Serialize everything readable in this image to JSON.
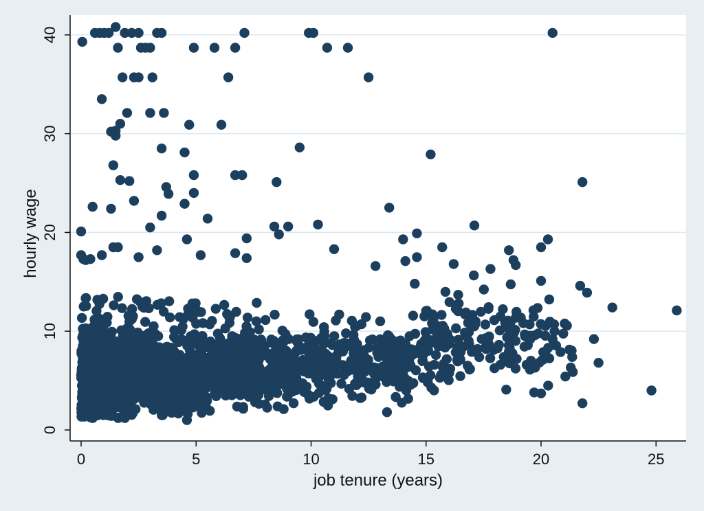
{
  "chart_data": {
    "type": "scatter",
    "title": "",
    "xlabel": "job tenure (years)",
    "ylabel": "hourly wage",
    "xlim": [
      -0.6,
      26.4
    ],
    "ylim": [
      -0.6,
      41.0
    ],
    "xticks": [
      0,
      5,
      10,
      15,
      20,
      25
    ],
    "yticks": [
      0,
      10,
      20,
      30,
      40
    ],
    "grid": "horizontal",
    "colors": {
      "marker": "#1d3f5e",
      "plot_background": "#ffffff",
      "outer_background": "#e8eef2",
      "grid": "#dde8ee",
      "axis": "#111111"
    },
    "outliers": [
      [
        0.05,
        39.3
      ],
      [
        0.6,
        40.2
      ],
      [
        0.8,
        40.2
      ],
      [
        1.0,
        40.2
      ],
      [
        1.2,
        40.2
      ],
      [
        1.5,
        40.8
      ],
      [
        1.9,
        40.2
      ],
      [
        2.2,
        40.2
      ],
      [
        2.5,
        40.2
      ],
      [
        3.3,
        40.2
      ],
      [
        3.5,
        40.2
      ],
      [
        7.1,
        40.2
      ],
      [
        9.9,
        40.2
      ],
      [
        10.1,
        40.2
      ],
      [
        20.5,
        40.2
      ],
      [
        1.6,
        38.7
      ],
      [
        2.6,
        38.7
      ],
      [
        2.8,
        38.7
      ],
      [
        3.0,
        38.7
      ],
      [
        4.9,
        38.7
      ],
      [
        5.8,
        38.7
      ],
      [
        6.7,
        38.7
      ],
      [
        10.7,
        38.7
      ],
      [
        11.6,
        38.7
      ],
      [
        1.8,
        35.7
      ],
      [
        2.3,
        35.7
      ],
      [
        2.5,
        35.7
      ],
      [
        3.1,
        35.7
      ],
      [
        6.4,
        35.7
      ],
      [
        12.5,
        35.7
      ],
      [
        0.9,
        33.5
      ],
      [
        2.0,
        32.1
      ],
      [
        3.0,
        32.1
      ],
      [
        3.6,
        32.1
      ],
      [
        1.7,
        31.0
      ],
      [
        4.7,
        30.9
      ],
      [
        6.1,
        30.9
      ],
      [
        1.3,
        30.2
      ],
      [
        1.5,
        30.3
      ],
      [
        1.5,
        29.8
      ],
      [
        3.5,
        28.5
      ],
      [
        9.5,
        28.6
      ],
      [
        4.5,
        28.1
      ],
      [
        15.2,
        27.9
      ],
      [
        1.4,
        26.8
      ],
      [
        4.9,
        25.8
      ],
      [
        6.7,
        25.8
      ],
      [
        7.0,
        25.8
      ],
      [
        1.7,
        25.3
      ],
      [
        2.1,
        25.2
      ],
      [
        8.5,
        25.1
      ],
      [
        21.8,
        25.1
      ],
      [
        3.7,
        24.6
      ],
      [
        3.8,
        23.9
      ],
      [
        4.9,
        24.0
      ],
      [
        2.3,
        23.2
      ],
      [
        4.5,
        22.9
      ],
      [
        0.5,
        22.6
      ],
      [
        1.3,
        22.4
      ],
      [
        13.4,
        22.5
      ],
      [
        3.5,
        21.7
      ],
      [
        5.5,
        21.4
      ],
      [
        3.0,
        20.5
      ],
      [
        8.4,
        20.6
      ],
      [
        9.0,
        20.6
      ],
      [
        10.3,
        20.8
      ],
      [
        17.1,
        20.7
      ],
      [
        0.0,
        20.1
      ],
      [
        14.6,
        19.9
      ],
      [
        4.6,
        19.3
      ],
      [
        7.2,
        19.4
      ],
      [
        8.6,
        19.8
      ],
      [
        14.0,
        19.3
      ],
      [
        20.3,
        19.3
      ],
      [
        1.4,
        18.5
      ],
      [
        1.6,
        18.5
      ],
      [
        3.3,
        18.2
      ],
      [
        11.0,
        18.3
      ],
      [
        15.7,
        18.5
      ],
      [
        18.6,
        18.2
      ],
      [
        20.0,
        18.5
      ],
      [
        0.0,
        17.7
      ],
      [
        0.1,
        17.3
      ],
      [
        0.2,
        17.2
      ],
      [
        0.4,
        17.3
      ],
      [
        0.9,
        17.7
      ],
      [
        2.5,
        17.5
      ],
      [
        5.2,
        17.7
      ],
      [
        6.7,
        17.9
      ],
      [
        7.2,
        17.4
      ],
      [
        12.8,
        16.6
      ],
      [
        14.1,
        17.1
      ],
      [
        14.6,
        17.5
      ],
      [
        16.2,
        16.8
      ],
      [
        17.8,
        16.3
      ],
      [
        18.8,
        17.2
      ],
      [
        18.9,
        16.7
      ],
      [
        20.0,
        15.1
      ],
      [
        21.7,
        14.6
      ],
      [
        22.0,
        13.9
      ],
      [
        23.1,
        12.4
      ],
      [
        25.9,
        12.1
      ],
      [
        24.8,
        4.0
      ],
      [
        21.8,
        2.7
      ],
      [
        22.5,
        6.8
      ],
      [
        22.3,
        9.2
      ],
      [
        19.7,
        3.8
      ],
      [
        20.0,
        3.7
      ],
      [
        13.3,
        1.8
      ],
      [
        4.6,
        1.0
      ]
    ],
    "clusters": [
      {
        "x_range": [
          0.0,
          1.0
        ],
        "y_range": [
          1.2,
          13.5
        ],
        "y_mode": 5.5,
        "count": 380
      },
      {
        "x_range": [
          1.0,
          2.5
        ],
        "y_range": [
          1.2,
          13.5
        ],
        "y_mode": 5.8,
        "count": 330
      },
      {
        "x_range": [
          2.5,
          4.0
        ],
        "y_range": [
          1.5,
          13.5
        ],
        "y_mode": 6.0,
        "count": 280
      },
      {
        "x_range": [
          4.0,
          5.5
        ],
        "y_range": [
          1.5,
          13.0
        ],
        "y_mode": 6.0,
        "count": 210
      },
      {
        "x_range": [
          5.5,
          7.0
        ],
        "y_range": [
          1.8,
          13.0
        ],
        "y_mode": 6.3,
        "count": 170
      },
      {
        "x_range": [
          7.0,
          9.0
        ],
        "y_range": [
          2.0,
          13.0
        ],
        "y_mode": 6.5,
        "count": 170
      },
      {
        "x_range": [
          9.0,
          11.0
        ],
        "y_range": [
          2.0,
          12.5
        ],
        "y_mode": 6.5,
        "count": 140
      },
      {
        "x_range": [
          11.0,
          13.0
        ],
        "y_range": [
          2.5,
          12.5
        ],
        "y_mode": 6.8,
        "count": 90
      },
      {
        "x_range": [
          13.0,
          14.5
        ],
        "y_range": [
          2.5,
          12.0
        ],
        "y_mode": 7.0,
        "count": 90
      },
      {
        "x_range": [
          14.5,
          16.5
        ],
        "y_range": [
          3.0,
          16.5
        ],
        "y_mode": 8.0,
        "count": 75
      },
      {
        "x_range": [
          16.5,
          19.0
        ],
        "y_range": [
          3.5,
          16.0
        ],
        "y_mode": 9.0,
        "count": 70
      },
      {
        "x_range": [
          19.0,
          21.5
        ],
        "y_range": [
          4.0,
          15.0
        ],
        "y_mode": 9.0,
        "count": 45
      }
    ]
  }
}
